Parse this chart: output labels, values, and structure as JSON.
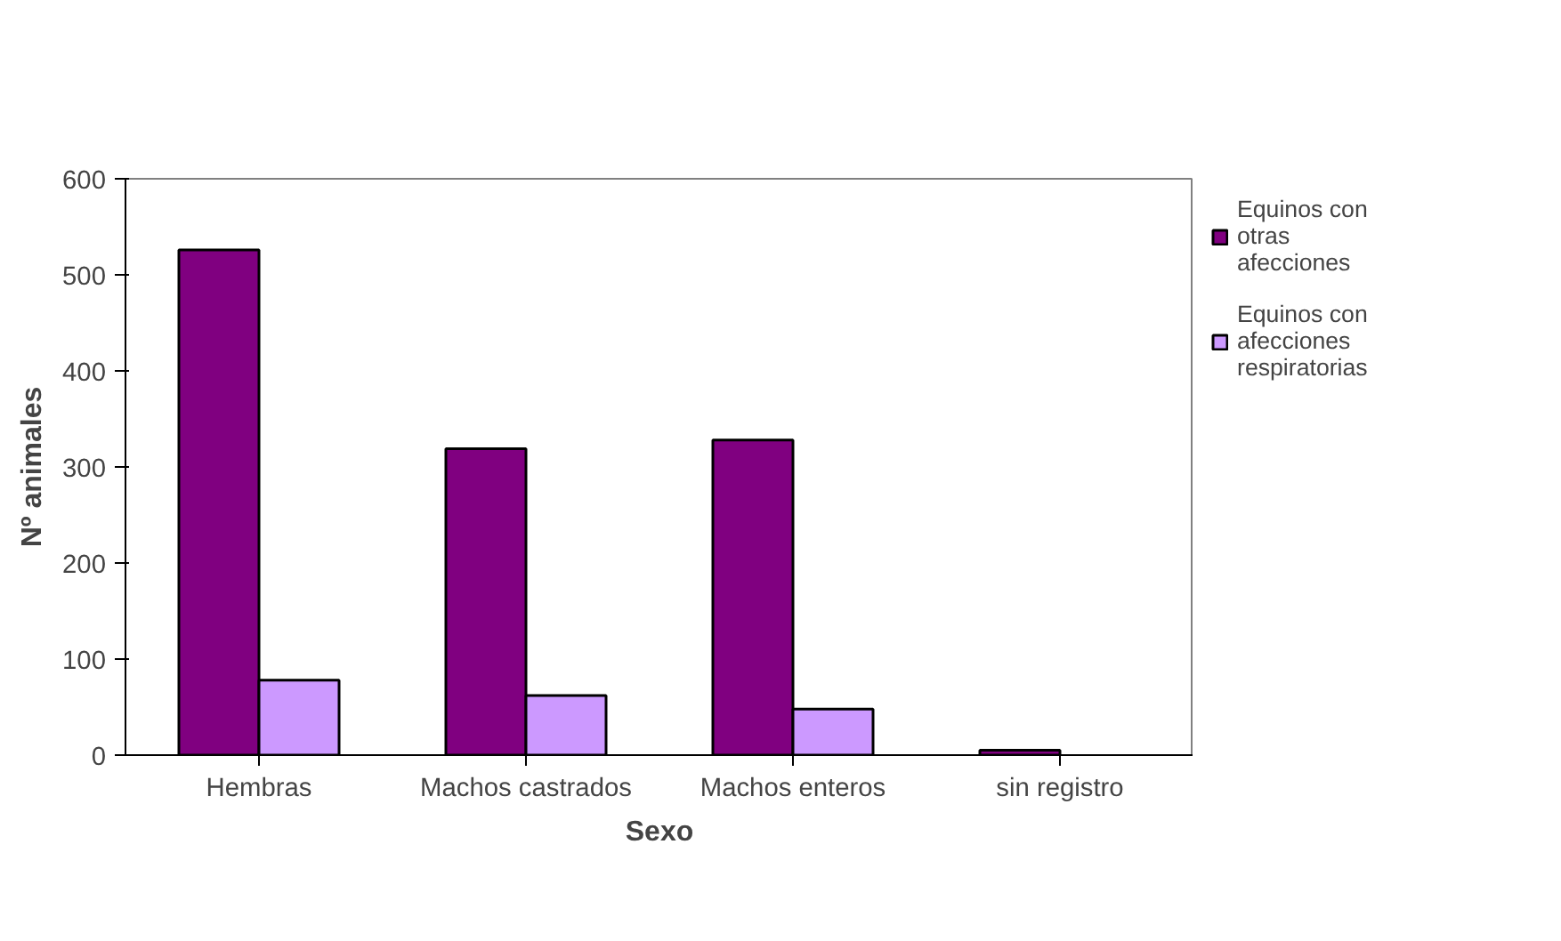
{
  "chart_data": {
    "type": "bar",
    "xlabel": "Sexo",
    "ylabel": "Nº animales",
    "categories": [
      "Hembras",
      "Machos castrados",
      "Machos enteros",
      "sin registro"
    ],
    "series": [
      {
        "name": "Equinos con otras afecciones",
        "color": "#800080",
        "values": [
          526,
          319,
          328,
          5
        ]
      },
      {
        "name": "Equinos con afecciones respiratorias",
        "color": "#cc99ff",
        "values": [
          78,
          62,
          48,
          0
        ]
      }
    ],
    "ylim": [
      0,
      600
    ],
    "yticks": [
      0,
      100,
      200,
      300,
      400,
      500,
      600
    ],
    "grid": false,
    "legend": "right"
  }
}
